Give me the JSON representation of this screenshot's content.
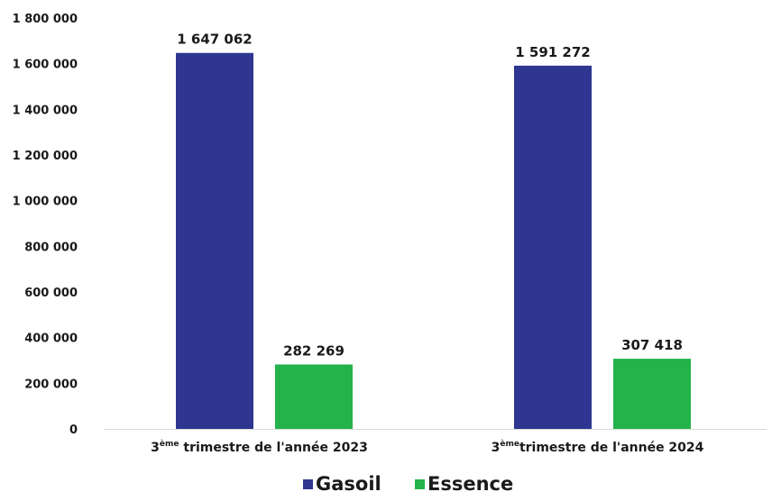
{
  "chart_data": {
    "type": "bar",
    "categories": [
      {
        "prefix": "3",
        "sup": "ème",
        "rest": " trimestre de l'année 2023"
      },
      {
        "prefix": "3",
        "sup": "ème",
        "rest": "trimestre de l'année 2024"
      }
    ],
    "series": [
      {
        "name": "Gasoil",
        "color": "#2E3691",
        "values": [
          1647062,
          1591272
        ],
        "labels": [
          "1 647 062",
          "1 591 272"
        ]
      },
      {
        "name": "Essence",
        "color": "#24B24A",
        "values": [
          282269,
          307418
        ],
        "labels": [
          "282 269",
          "307 418"
        ]
      }
    ],
    "ylim": [
      0,
      1800000
    ],
    "yticks": [
      {
        "value": 0,
        "label": "0"
      },
      {
        "value": 200000,
        "label": "200 000"
      },
      {
        "value": 400000,
        "label": "400 000"
      },
      {
        "value": 600000,
        "label": "600 000"
      },
      {
        "value": 800000,
        "label": "800 000"
      },
      {
        "value": 1000000,
        "label": "1 000 000"
      },
      {
        "value": 1200000,
        "label": "1 200 000"
      },
      {
        "value": 1400000,
        "label": "1 400 000"
      },
      {
        "value": 1600000,
        "label": "1 600 000"
      },
      {
        "value": 1800000,
        "label": "1 800 000"
      }
    ],
    "grid": false,
    "legend": "bottom-center",
    "title": "",
    "xlabel": "",
    "ylabel": ""
  }
}
